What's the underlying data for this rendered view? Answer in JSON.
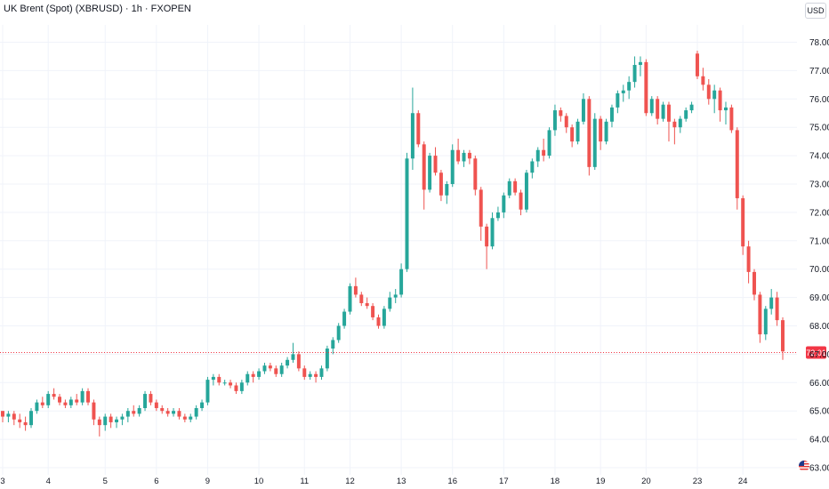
{
  "header": {
    "title": "UK Brent (Spot) (XBRUSD) · 1h · FXOPEN",
    "currency": "USD"
  },
  "colors": {
    "up": "#26a69a",
    "down": "#ef5350",
    "grid": "#f0f3fa",
    "text": "#131722",
    "price_line": "#f23645"
  },
  "icons": {
    "flag": "us-flag-icon"
  },
  "chart_data": {
    "type": "candlestick",
    "title": "UK Brent (Spot) (XBRUSD) · 1h · FXOPEN",
    "ylim": [
      62.5,
      78.6
    ],
    "y_ticks": [
      "78.00",
      "77.00",
      "76.00",
      "75.00",
      "74.00",
      "73.00",
      "72.00",
      "71.00",
      "70.00",
      "69.00",
      "68.00",
      "67.00",
      "66.00",
      "65.00",
      "64.00",
      "63.00"
    ],
    "x_ticks": [
      "3",
      "4",
      "5",
      "6",
      "9",
      "10",
      "11",
      "12",
      "13",
      "16",
      "17",
      "18",
      "19",
      "20",
      "23",
      "24"
    ],
    "last_price": 67.06,
    "last_price_label": "72:01",
    "grid": true,
    "series": [
      {
        "values": [
          [
            "3",
            65.0,
            65.0,
            64.6,
            64.8
          ],
          [
            "3",
            64.8,
            65.0,
            64.6,
            64.9
          ],
          [
            "3",
            64.9,
            65.0,
            64.5,
            64.7
          ],
          [
            "3",
            64.7,
            64.9,
            64.4,
            64.6
          ],
          [
            "3",
            64.6,
            64.8,
            64.3,
            64.5
          ],
          [
            "3",
            64.5,
            65.1,
            64.4,
            65.0
          ],
          [
            "3",
            65.0,
            65.4,
            64.9,
            65.3
          ],
          [
            "3",
            65.3,
            65.5,
            65.1,
            65.2
          ],
          [
            "4",
            65.2,
            65.7,
            65.1,
            65.6
          ],
          [
            "4",
            65.6,
            65.8,
            65.4,
            65.5
          ],
          [
            "4",
            65.5,
            65.6,
            65.2,
            65.3
          ],
          [
            "4",
            65.3,
            65.4,
            65.1,
            65.2
          ],
          [
            "4",
            65.2,
            65.5,
            65.1,
            65.4
          ],
          [
            "4",
            65.4,
            65.6,
            65.2,
            65.3
          ],
          [
            "4",
            65.3,
            65.8,
            65.2,
            65.7
          ],
          [
            "4",
            65.7,
            65.8,
            65.2,
            65.3
          ],
          [
            "4",
            65.3,
            65.4,
            64.5,
            64.7
          ],
          [
            "4",
            64.7,
            64.8,
            64.1,
            64.5
          ],
          [
            "5",
            64.5,
            64.9,
            64.3,
            64.8
          ],
          [
            "5",
            64.8,
            64.9,
            64.4,
            64.6
          ],
          [
            "5",
            64.6,
            64.8,
            64.4,
            64.7
          ],
          [
            "5",
            64.7,
            64.9,
            64.5,
            64.8
          ],
          [
            "5",
            64.8,
            65.1,
            64.6,
            65.0
          ],
          [
            "5",
            65.0,
            65.2,
            64.8,
            64.9
          ],
          [
            "5",
            64.9,
            65.2,
            64.8,
            65.1
          ],
          [
            "5",
            65.1,
            65.7,
            65.0,
            65.6
          ],
          [
            "5",
            65.6,
            65.7,
            65.2,
            65.3
          ],
          [
            "6",
            65.3,
            65.4,
            65.0,
            65.1
          ],
          [
            "6",
            65.1,
            65.2,
            64.9,
            65.0
          ],
          [
            "6",
            65.0,
            65.1,
            64.8,
            64.9
          ],
          [
            "6",
            64.9,
            65.1,
            64.8,
            65.0
          ],
          [
            "6",
            65.0,
            65.1,
            64.7,
            64.8
          ],
          [
            "6",
            64.8,
            64.9,
            64.6,
            64.7
          ],
          [
            "6",
            64.7,
            64.9,
            64.6,
            64.8
          ],
          [
            "6",
            64.8,
            65.2,
            64.7,
            65.1
          ],
          [
            "6",
            65.1,
            65.4,
            65.0,
            65.3
          ],
          [
            "9",
            65.3,
            66.2,
            65.2,
            66.1
          ],
          [
            "9",
            66.1,
            66.3,
            65.9,
            66.2
          ],
          [
            "9",
            66.2,
            66.3,
            65.9,
            66.0
          ],
          [
            "9",
            66.0,
            66.1,
            65.9,
            66.0
          ],
          [
            "9",
            66.0,
            66.1,
            65.8,
            65.9
          ],
          [
            "9",
            65.9,
            66.0,
            65.6,
            65.7
          ],
          [
            "9",
            65.7,
            66.1,
            65.6,
            66.0
          ],
          [
            "9",
            66.0,
            66.4,
            65.9,
            66.3
          ],
          [
            "9",
            66.3,
            66.4,
            66.0,
            66.2
          ],
          [
            "10",
            66.2,
            66.5,
            66.1,
            66.4
          ],
          [
            "10",
            66.4,
            66.7,
            66.3,
            66.6
          ],
          [
            "10",
            66.6,
            66.7,
            66.4,
            66.5
          ],
          [
            "10",
            66.5,
            66.6,
            66.2,
            66.3
          ],
          [
            "10",
            66.3,
            66.7,
            66.2,
            66.6
          ],
          [
            "10",
            66.6,
            66.9,
            66.5,
            66.8
          ],
          [
            "10",
            66.8,
            67.4,
            66.7,
            67.0
          ],
          [
            "10",
            67.0,
            67.1,
            66.4,
            66.5
          ],
          [
            "11",
            66.5,
            66.6,
            66.1,
            66.2
          ],
          [
            "11",
            66.2,
            66.4,
            66.1,
            66.3
          ],
          [
            "11",
            66.3,
            66.4,
            66.0,
            66.2
          ],
          [
            "11",
            66.2,
            66.6,
            66.1,
            66.5
          ],
          [
            "11",
            66.5,
            67.3,
            66.4,
            67.2
          ],
          [
            "11",
            67.2,
            67.6,
            67.0,
            67.5
          ],
          [
            "11",
            67.5,
            68.1,
            67.4,
            68.0
          ],
          [
            "11",
            68.0,
            68.6,
            67.9,
            68.5
          ],
          [
            "12",
            68.5,
            69.5,
            68.4,
            69.4
          ],
          [
            "12",
            69.4,
            69.7,
            69.0,
            69.1
          ],
          [
            "12",
            69.1,
            69.2,
            68.7,
            68.8
          ],
          [
            "12",
            68.8,
            69.0,
            68.6,
            68.7
          ],
          [
            "12",
            68.7,
            68.8,
            68.2,
            68.3
          ],
          [
            "12",
            68.3,
            68.4,
            67.9,
            68.0
          ],
          [
            "12",
            68.0,
            68.7,
            67.9,
            68.6
          ],
          [
            "12",
            68.6,
            69.2,
            68.5,
            69.0
          ],
          [
            "12",
            69.0,
            69.3,
            68.8,
            69.1
          ],
          [
            "13",
            69.1,
            70.2,
            69.0,
            70.0
          ],
          [
            "13",
            70.0,
            74.1,
            69.9,
            73.9
          ],
          [
            "13",
            73.9,
            76.4,
            73.5,
            75.5
          ],
          [
            "13",
            75.5,
            75.6,
            74.3,
            74.4
          ],
          [
            "13",
            74.4,
            74.5,
            72.1,
            72.8
          ],
          [
            "13",
            72.8,
            74.1,
            72.7,
            74.0
          ],
          [
            "13",
            74.0,
            74.3,
            73.3,
            73.4
          ],
          [
            "13",
            73.4,
            73.5,
            72.4,
            72.6
          ],
          [
            "13",
            72.6,
            73.1,
            72.3,
            73.0
          ],
          [
            "16",
            73.0,
            74.4,
            72.9,
            74.2
          ],
          [
            "16",
            74.2,
            74.6,
            73.7,
            73.8
          ],
          [
            "16",
            73.8,
            74.2,
            73.6,
            74.1
          ],
          [
            "16",
            74.1,
            74.2,
            73.7,
            73.9
          ],
          [
            "16",
            73.9,
            74.0,
            72.6,
            72.8
          ],
          [
            "16",
            72.8,
            72.9,
            71.0,
            71.5
          ],
          [
            "16",
            71.5,
            71.6,
            70.0,
            70.8
          ],
          [
            "16",
            70.8,
            72.0,
            70.7,
            71.8
          ],
          [
            "16",
            71.8,
            72.2,
            71.7,
            72.0
          ],
          [
            "17",
            72.0,
            72.7,
            71.8,
            72.6
          ],
          [
            "17",
            72.6,
            73.2,
            72.5,
            73.1
          ],
          [
            "17",
            73.1,
            73.2,
            72.6,
            72.7
          ],
          [
            "17",
            72.7,
            72.8,
            71.9,
            72.1
          ],
          [
            "17",
            72.1,
            73.5,
            72.0,
            73.4
          ],
          [
            "17",
            73.4,
            73.9,
            73.2,
            73.8
          ],
          [
            "17",
            73.8,
            74.3,
            73.6,
            74.2
          ],
          [
            "17",
            74.2,
            74.6,
            73.8,
            74.0
          ],
          [
            "17",
            74.0,
            75.0,
            73.9,
            74.9
          ],
          [
            "18",
            74.9,
            75.8,
            74.7,
            75.6
          ],
          [
            "18",
            75.6,
            75.7,
            75.2,
            75.4
          ],
          [
            "18",
            75.4,
            75.5,
            74.8,
            75.0
          ],
          [
            "18",
            75.0,
            75.1,
            74.3,
            74.5
          ],
          [
            "18",
            74.5,
            75.3,
            74.4,
            75.2
          ],
          [
            "18",
            75.2,
            76.2,
            75.1,
            76.0
          ],
          [
            "18",
            76.0,
            76.1,
            73.3,
            73.6
          ],
          [
            "18",
            73.6,
            75.5,
            73.5,
            75.3
          ],
          [
            "19",
            75.3,
            75.4,
            74.2,
            74.5
          ],
          [
            "19",
            74.5,
            75.3,
            74.4,
            75.2
          ],
          [
            "19",
            75.2,
            75.8,
            75.0,
            75.7
          ],
          [
            "19",
            75.7,
            76.3,
            75.5,
            76.2
          ],
          [
            "19",
            76.2,
            76.5,
            75.9,
            76.3
          ],
          [
            "19",
            76.3,
            76.8,
            76.0,
            76.6
          ],
          [
            "19",
            76.6,
            77.5,
            76.4,
            77.2
          ],
          [
            "19",
            77.2,
            77.5,
            76.8,
            77.3
          ],
          [
            "20",
            77.3,
            77.4,
            75.4,
            75.5
          ],
          [
            "20",
            75.5,
            76.1,
            75.4,
            76.0
          ],
          [
            "20",
            76.0,
            76.1,
            75.1,
            75.3
          ],
          [
            "20",
            75.3,
            75.9,
            75.2,
            75.8
          ],
          [
            "20",
            75.8,
            75.9,
            74.5,
            75.2
          ],
          [
            "20",
            75.2,
            75.3,
            74.4,
            75.0
          ],
          [
            "20",
            75.0,
            75.4,
            74.8,
            75.3
          ],
          [
            "20",
            75.3,
            75.7,
            75.2,
            75.6
          ],
          [
            "20",
            75.6,
            75.9,
            75.5,
            75.8
          ],
          [
            "23",
            77.6,
            77.7,
            76.7,
            76.8
          ],
          [
            "23",
            76.8,
            77.1,
            76.3,
            76.5
          ],
          [
            "23",
            76.5,
            76.7,
            75.8,
            76.0
          ],
          [
            "23",
            76.0,
            76.5,
            75.5,
            76.3
          ],
          [
            "23",
            76.3,
            76.4,
            75.2,
            75.6
          ],
          [
            "23",
            75.6,
            75.9,
            75.1,
            75.7
          ],
          [
            "23",
            75.7,
            75.8,
            74.8,
            74.9
          ],
          [
            "23",
            74.9,
            75.0,
            72.1,
            72.5
          ],
          [
            "24",
            72.5,
            72.6,
            70.5,
            70.8
          ],
          [
            "24",
            70.8,
            71.0,
            69.5,
            69.9
          ],
          [
            "24",
            69.9,
            70.0,
            68.9,
            69.1
          ],
          [
            "24",
            69.1,
            69.2,
            67.4,
            67.7
          ],
          [
            "24",
            67.7,
            68.7,
            67.5,
            68.6
          ],
          [
            "24",
            68.6,
            69.3,
            68.4,
            69.0
          ],
          [
            "24",
            69.0,
            69.2,
            68.0,
            68.2
          ],
          [
            "24",
            68.2,
            68.3,
            66.8,
            67.1
          ]
        ]
      }
    ]
  }
}
